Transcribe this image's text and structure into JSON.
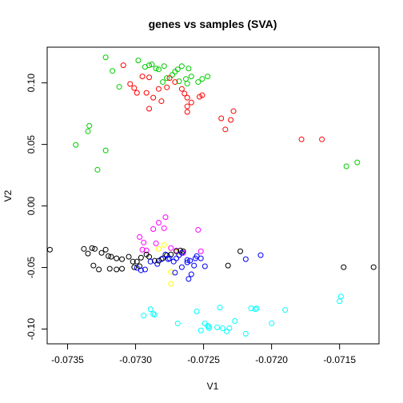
{
  "chart_data": {
    "type": "scatter",
    "title": "genes vs samples (SVA)",
    "xlabel": "V1",
    "ylabel": "V2",
    "xlim": [
      -0.07365,
      -0.07121
    ],
    "ylim": [
      -0.112,
      0.129
    ],
    "x_ticks": [
      "-0.0735",
      "-0.0730",
      "-0.0725",
      "-0.0720",
      "-0.0715"
    ],
    "x_tick_values": [
      -0.0735,
      -0.073,
      -0.0725,
      -0.072,
      -0.0715
    ],
    "y_ticks": [
      "-0.10",
      "-0.05",
      "0.00",
      "0.05",
      "0.10"
    ],
    "y_tick_values": [
      -0.1,
      -0.05,
      0.0,
      0.05,
      0.1
    ],
    "grid": false,
    "legend": "none",
    "marker": "open-circle",
    "series": [
      {
        "color": "#00cd00",
        "points": [
          [
            -0.07322,
            0.1207
          ],
          [
            -0.07317,
            0.1097
          ],
          [
            -0.07312,
            0.0968
          ],
          [
            -0.07298,
            0.1182
          ],
          [
            -0.07293,
            0.113
          ],
          [
            -0.07288,
            0.115
          ],
          [
            -0.0729,
            0.1143
          ],
          [
            -0.07285,
            0.1117
          ],
          [
            -0.07283,
            0.111
          ],
          [
            -0.07279,
            0.1136
          ],
          [
            -0.0728,
            0.1007
          ],
          [
            -0.07277,
            0.1039
          ],
          [
            -0.07273,
            0.1065
          ],
          [
            -0.07271,
            0.1091
          ],
          [
            -0.07269,
            0.111
          ],
          [
            -0.07266,
            0.1136
          ],
          [
            -0.07261,
            0.1117
          ],
          [
            -0.07268,
            0.1013
          ],
          [
            -0.07263,
            0.1032
          ],
          [
            -0.07259,
            0.1052
          ],
          [
            -0.07262,
            0.0994
          ],
          [
            -0.07254,
            0.1007
          ],
          [
            -0.07251,
            0.1032
          ],
          [
            -0.07247,
            0.1052
          ],
          [
            -0.07334,
            0.0651
          ],
          [
            -0.07335,
            0.0606
          ],
          [
            -0.07344,
            0.0496
          ],
          [
            -0.07322,
            0.0451
          ],
          [
            -0.07328,
            0.0294
          ],
          [
            -0.07145,
            0.0322
          ],
          [
            -0.07137,
            0.0354
          ]
        ]
      },
      {
        "color": "#ff0000",
        "points": [
          [
            -0.07309,
            0.1143
          ],
          [
            -0.07304,
            0.0991
          ],
          [
            -0.07301,
            0.0958
          ],
          [
            -0.07299,
            0.0919
          ],
          [
            -0.07295,
            0.1052
          ],
          [
            -0.0729,
            0.1045
          ],
          [
            -0.07292,
            0.0919
          ],
          [
            -0.07287,
            0.088
          ],
          [
            -0.0729,
            0.079
          ],
          [
            -0.07283,
            0.0951
          ],
          [
            -0.07281,
            0.0851
          ],
          [
            -0.07277,
            0.0964
          ],
          [
            -0.07275,
            0.1039
          ],
          [
            -0.07271,
            0.1007
          ],
          [
            -0.07266,
            0.0951
          ],
          [
            -0.07264,
            0.0913
          ],
          [
            -0.07262,
            0.088
          ],
          [
            -0.07259,
            0.0841
          ],
          [
            -0.07262,
            0.0809
          ],
          [
            -0.07251,
            0.09
          ],
          [
            -0.07253,
            0.0887
          ],
          [
            -0.07262,
            0.0764
          ],
          [
            -0.07237,
            0.0712
          ],
          [
            -0.07234,
            0.0622
          ],
          [
            -0.0723,
            0.0699
          ],
          [
            -0.07228,
            0.077
          ],
          [
            -0.07178,
            0.0541
          ],
          [
            -0.07163,
            0.0541
          ]
        ]
      },
      {
        "color": "#ff00ff",
        "points": [
          [
            -0.07278,
            -0.0091
          ],
          [
            -0.07283,
            -0.0136
          ],
          [
            -0.07287,
            -0.0188
          ],
          [
            -0.07279,
            -0.0181
          ],
          [
            -0.07297,
            -0.0252
          ],
          [
            -0.07294,
            -0.0297
          ],
          [
            -0.07285,
            -0.0304
          ],
          [
            -0.07292,
            -0.0362
          ],
          [
            -0.07295,
            -0.0355
          ],
          [
            -0.07274,
            -0.0342
          ],
          [
            -0.0727,
            -0.0362
          ],
          [
            -0.07265,
            -0.0381
          ],
          [
            -0.07254,
            -0.0194
          ],
          [
            -0.07252,
            -0.0368
          ]
        ]
      },
      {
        "color": "#ffff00",
        "points": [
          [
            -0.07279,
            -0.0317
          ],
          [
            -0.07283,
            -0.0349
          ],
          [
            -0.07274,
            -0.0535
          ],
          [
            -0.07274,
            -0.0632
          ],
          [
            -0.07269,
            -0.0375
          ]
        ]
      },
      {
        "color": "#000000",
        "points": [
          [
            -0.07363,
            -0.0355
          ],
          [
            -0.07338,
            -0.0349
          ],
          [
            -0.07335,
            -0.0387
          ],
          [
            -0.07332,
            -0.0342
          ],
          [
            -0.0733,
            -0.0349
          ],
          [
            -0.07325,
            -0.0381
          ],
          [
            -0.07322,
            -0.0355
          ],
          [
            -0.0732,
            -0.0407
          ],
          [
            -0.07318,
            -0.0413
          ],
          [
            -0.07314,
            -0.0426
          ],
          [
            -0.0731,
            -0.0432
          ],
          [
            -0.07305,
            -0.0413
          ],
          [
            -0.07302,
            -0.0452
          ],
          [
            -0.07299,
            -0.0452
          ],
          [
            -0.07296,
            -0.042
          ],
          [
            -0.07292,
            -0.0394
          ],
          [
            -0.0729,
            -0.0413
          ],
          [
            -0.07286,
            -0.0445
          ],
          [
            -0.07283,
            -0.0445
          ],
          [
            -0.0728,
            -0.0426
          ],
          [
            -0.07277,
            -0.04
          ],
          [
            -0.07274,
            -0.0394
          ],
          [
            -0.0727,
            -0.0368
          ],
          [
            -0.07267,
            -0.0362
          ],
          [
            -0.07265,
            -0.0368
          ],
          [
            -0.07331,
            -0.0484
          ],
          [
            -0.07327,
            -0.0516
          ],
          [
            -0.07319,
            -0.051
          ],
          [
            -0.07314,
            -0.0516
          ],
          [
            -0.0731,
            -0.051
          ],
          [
            -0.07301,
            -0.0497
          ],
          [
            -0.07297,
            -0.049
          ],
          [
            -0.07223,
            -0.0368
          ],
          [
            -0.07232,
            -0.0484
          ],
          [
            -0.07147,
            -0.0497
          ],
          [
            -0.07125,
            -0.0497
          ]
        ]
      },
      {
        "color": "#0000ff",
        "points": [
          [
            -0.07299,
            -0.0503
          ],
          [
            -0.07296,
            -0.0522
          ],
          [
            -0.07293,
            -0.0516
          ],
          [
            -0.07289,
            -0.0452
          ],
          [
            -0.07284,
            -0.0471
          ],
          [
            -0.07281,
            -0.0432
          ],
          [
            -0.07278,
            -0.0394
          ],
          [
            -0.07276,
            -0.0432
          ],
          [
            -0.07275,
            -0.0426
          ],
          [
            -0.07272,
            -0.0452
          ],
          [
            -0.0727,
            -0.0426
          ],
          [
            -0.07268,
            -0.04
          ],
          [
            -0.07266,
            -0.0381
          ],
          [
            -0.07262,
            -0.0439
          ],
          [
            -0.0726,
            -0.0445
          ],
          [
            -0.07256,
            -0.0426
          ],
          [
            -0.07255,
            -0.0407
          ],
          [
            -0.07252,
            -0.0426
          ],
          [
            -0.07249,
            -0.049
          ],
          [
            -0.07257,
            -0.0484
          ],
          [
            -0.07262,
            -0.0458
          ],
          [
            -0.07266,
            -0.0497
          ],
          [
            -0.07271,
            -0.0542
          ],
          [
            -0.07259,
            -0.0555
          ],
          [
            -0.07261,
            -0.0593
          ],
          [
            -0.07219,
            -0.0432
          ],
          [
            -0.07208,
            -0.04
          ]
        ]
      },
      {
        "color": "#00ffff",
        "points": [
          [
            -0.07289,
            -0.0838
          ],
          [
            -0.07294,
            -0.089
          ],
          [
            -0.07287,
            -0.0877
          ],
          [
            -0.07286,
            -0.0883
          ],
          [
            -0.07269,
            -0.0954
          ],
          [
            -0.07255,
            -0.0857
          ],
          [
            -0.07249,
            -0.0954
          ],
          [
            -0.07247,
            -0.0974
          ],
          [
            -0.07246,
            -0.098
          ],
          [
            -0.07252,
            -0.1012
          ],
          [
            -0.07246,
            -0.0993
          ],
          [
            -0.0724,
            -0.0986
          ],
          [
            -0.07236,
            -0.0993
          ],
          [
            -0.07233,
            -0.1019
          ],
          [
            -0.07231,
            -0.0993
          ],
          [
            -0.07227,
            -0.0935
          ],
          [
            -0.07238,
            -0.0825
          ],
          [
            -0.07219,
            -0.1038
          ],
          [
            -0.07215,
            -0.0832
          ],
          [
            -0.07212,
            -0.0838
          ],
          [
            -0.07211,
            -0.0832
          ],
          [
            -0.072,
            -0.0954
          ],
          [
            -0.0719,
            -0.0845
          ],
          [
            -0.0715,
            -0.0774
          ],
          [
            -0.07149,
            -0.0735
          ]
        ]
      }
    ]
  }
}
